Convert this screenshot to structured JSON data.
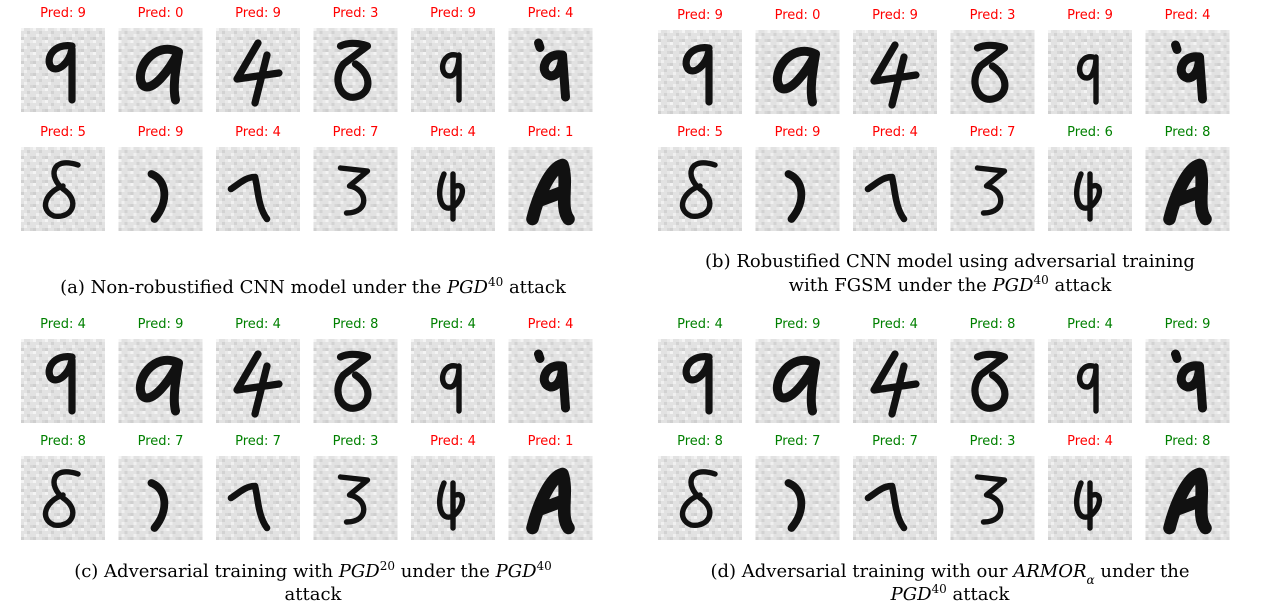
{
  "panels": [
    {
      "predictions": [
        {
          "text": "Pred: 9",
          "color": "#ff0000"
        },
        {
          "text": "Pred: 0",
          "color": "#ff0000"
        },
        {
          "text": "Pred: 9",
          "color": "#ff0000"
        },
        {
          "text": "Pred: 3",
          "color": "#ff0000"
        },
        {
          "text": "Pred: 9",
          "color": "#ff0000"
        },
        {
          "text": "Pred: 4",
          "color": "#ff0000"
        },
        {
          "text": "Pred: 5",
          "color": "#ff0000"
        },
        {
          "text": "Pred: 9",
          "color": "#ff0000"
        },
        {
          "text": "Pred: 4",
          "color": "#ff0000"
        },
        {
          "text": "Pred: 7",
          "color": "#ff0000"
        },
        {
          "text": "Pred: 4",
          "color": "#ff0000"
        },
        {
          "text": "Pred: 1",
          "color": "#ff0000"
        }
      ],
      "caption": [
        [
          {
            "text": "(a) Non-robustified CNN model under the "
          },
          {
            "text": "PGD",
            "style": "italic"
          },
          {
            "text": "40",
            "style": "sup"
          },
          {
            "text": " attack"
          }
        ]
      ]
    },
    {
      "predictions": [
        {
          "text": "Pred: 9",
          "color": "#ff0000"
        },
        {
          "text": "Pred: 0",
          "color": "#ff0000"
        },
        {
          "text": "Pred: 9",
          "color": "#ff0000"
        },
        {
          "text": "Pred: 3",
          "color": "#ff0000"
        },
        {
          "text": "Pred: 9",
          "color": "#ff0000"
        },
        {
          "text": "Pred: 4",
          "color": "#ff0000"
        },
        {
          "text": "Pred: 5",
          "color": "#ff0000"
        },
        {
          "text": "Pred: 9",
          "color": "#ff0000"
        },
        {
          "text": "Pred: 4",
          "color": "#ff0000"
        },
        {
          "text": "Pred: 7",
          "color": "#ff0000"
        },
        {
          "text": "Pred: 6",
          "color": "#008000"
        },
        {
          "text": "Pred: 8",
          "color": "#008000"
        }
      ],
      "caption": [
        [
          {
            "text": "(b) Robustified CNN model using adversarial training"
          }
        ],
        [
          {
            "text": "with FGSM under the "
          },
          {
            "text": "PGD",
            "style": "italic"
          },
          {
            "text": "40",
            "style": "sup"
          },
          {
            "text": " attack"
          }
        ]
      ]
    },
    {
      "predictions": [
        {
          "text": "Pred: 4",
          "color": "#008000"
        },
        {
          "text": "Pred: 9",
          "color": "#008000"
        },
        {
          "text": "Pred: 4",
          "color": "#008000"
        },
        {
          "text": "Pred: 8",
          "color": "#008000"
        },
        {
          "text": "Pred: 4",
          "color": "#008000"
        },
        {
          "text": "Pred: 4",
          "color": "#ff0000"
        },
        {
          "text": "Pred: 8",
          "color": "#008000"
        },
        {
          "text": "Pred: 7",
          "color": "#008000"
        },
        {
          "text": "Pred: 7",
          "color": "#008000"
        },
        {
          "text": "Pred: 3",
          "color": "#008000"
        },
        {
          "text": "Pred: 4",
          "color": "#ff0000"
        },
        {
          "text": "Pred: 1",
          "color": "#ff0000"
        }
      ],
      "caption": [
        [
          {
            "text": "(c) Adversarial training with "
          },
          {
            "text": "PGD",
            "style": "italic"
          },
          {
            "text": "20",
            "style": "sup"
          },
          {
            "text": " under the "
          },
          {
            "text": "PGD",
            "style": "italic"
          },
          {
            "text": "40",
            "style": "sup"
          }
        ],
        [
          {
            "text": "attack"
          }
        ]
      ]
    },
    {
      "predictions": [
        {
          "text": "Pred: 4",
          "color": "#008000"
        },
        {
          "text": "Pred: 9",
          "color": "#008000"
        },
        {
          "text": "Pred: 4",
          "color": "#008000"
        },
        {
          "text": "Pred: 8",
          "color": "#008000"
        },
        {
          "text": "Pred: 4",
          "color": "#008000"
        },
        {
          "text": "Pred: 9",
          "color": "#008000"
        },
        {
          "text": "Pred: 8",
          "color": "#008000"
        },
        {
          "text": "Pred: 7",
          "color": "#008000"
        },
        {
          "text": "Pred: 7",
          "color": "#008000"
        },
        {
          "text": "Pred: 3",
          "color": "#008000"
        },
        {
          "text": "Pred: 4",
          "color": "#ff0000"
        },
        {
          "text": "Pred: 8",
          "color": "#008000"
        }
      ],
      "caption": [
        [
          {
            "text": "(d) Adversarial training with our "
          },
          {
            "text": "ARMOR",
            "style": "italic"
          },
          {
            "text": "α",
            "style": "sub"
          },
          {
            "text": " under the"
          }
        ],
        [
          {
            "text": "PGD",
            "style": "italic"
          },
          {
            "text": "40",
            "style": "sup"
          },
          {
            "text": " attack"
          }
        ]
      ]
    }
  ]
}
